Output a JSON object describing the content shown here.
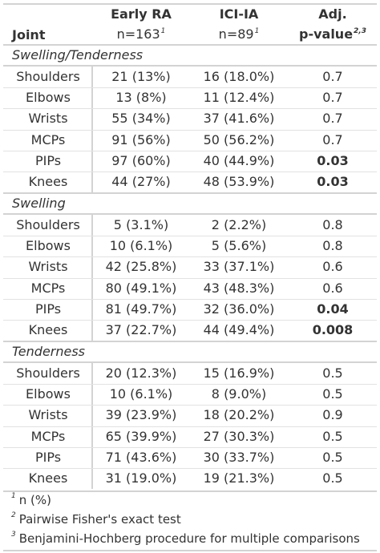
{
  "header": {
    "joint": "Joint",
    "early_ra": {
      "name": "Early RA",
      "n": "n=163",
      "sup": "1"
    },
    "ici_ia": {
      "name": "ICI-IA",
      "n": "n=89",
      "sup": "1"
    },
    "adj": {
      "line1": "Adj.",
      "line2": "p-value",
      "sup": "2,3"
    }
  },
  "groups": [
    {
      "title": "Swelling/Tenderness",
      "rows": [
        {
          "joint": "Shoulders",
          "early": "21 (13%)",
          "ici": "16 (18.0%)",
          "p": "0.7",
          "bold": false
        },
        {
          "joint": "Elbows",
          "early": "13 (8%)",
          "ici": "11 (12.4%)",
          "p": "0.7",
          "bold": false
        },
        {
          "joint": "Wrists",
          "early": "55 (34%)",
          "ici": "37 (41.6%)",
          "p": "0.7",
          "bold": false
        },
        {
          "joint": "MCPs",
          "early": "91 (56%)",
          "ici": "50 (56.2%)",
          "p": "0.7",
          "bold": false
        },
        {
          "joint": "PIPs",
          "early": "97 (60%)",
          "ici": "40 (44.9%)",
          "p": "0.03",
          "bold": true
        },
        {
          "joint": "Knees",
          "early": "44 (27%)",
          "ici": "48 (53.9%)",
          "p": "0.03",
          "bold": true
        }
      ]
    },
    {
      "title": "Swelling",
      "rows": [
        {
          "joint": "Shoulders",
          "early": "5 (3.1%)",
          "ici": "2 (2.2%)",
          "p": "0.8",
          "bold": false
        },
        {
          "joint": "Elbows",
          "early": "10 (6.1%)",
          "ici": "5 (5.6%)",
          "p": "0.8",
          "bold": false
        },
        {
          "joint": "Wrists",
          "early": "42 (25.8%)",
          "ici": "33 (37.1%)",
          "p": "0.6",
          "bold": false
        },
        {
          "joint": "MCPs",
          "early": "80 (49.1%)",
          "ici": "43 (48.3%)",
          "p": "0.6",
          "bold": false
        },
        {
          "joint": "PIPs",
          "early": "81 (49.7%)",
          "ici": "32 (36.0%)",
          "p": "0.04",
          "bold": true
        },
        {
          "joint": "Knees",
          "early": "37 (22.7%)",
          "ici": "44 (49.4%)",
          "p": "0.008",
          "bold": true
        }
      ]
    },
    {
      "title": "Tenderness",
      "rows": [
        {
          "joint": "Shoulders",
          "early": "20 (12.3%)",
          "ici": "15 (16.9%)",
          "p": "0.5",
          "bold": false
        },
        {
          "joint": "Elbows",
          "early": "10 (6.1%)",
          "ici": "8 (9.0%)",
          "p": "0.5",
          "bold": false
        },
        {
          "joint": "Wrists",
          "early": "39 (23.9%)",
          "ici": "18 (20.2%)",
          "p": "0.9",
          "bold": false
        },
        {
          "joint": "MCPs",
          "early": "65 (39.9%)",
          "ici": "27 (30.3%)",
          "p": "0.5",
          "bold": false
        },
        {
          "joint": "PIPs",
          "early": "71 (43.6%)",
          "ici": "30 (33.7%)",
          "p": "0.5",
          "bold": false
        },
        {
          "joint": "Knees",
          "early": "31 (19.0%)",
          "ici": "19 (21.3%)",
          "p": "0.5",
          "bold": false
        }
      ]
    }
  ],
  "footnotes": [
    {
      "mark": "1",
      "text": "n (%)"
    },
    {
      "mark": "2",
      "text": "Pairwise Fisher's exact test"
    },
    {
      "mark": "3",
      "text": "Benjamini-Hochberg procedure for multiple comparisons"
    }
  ]
}
